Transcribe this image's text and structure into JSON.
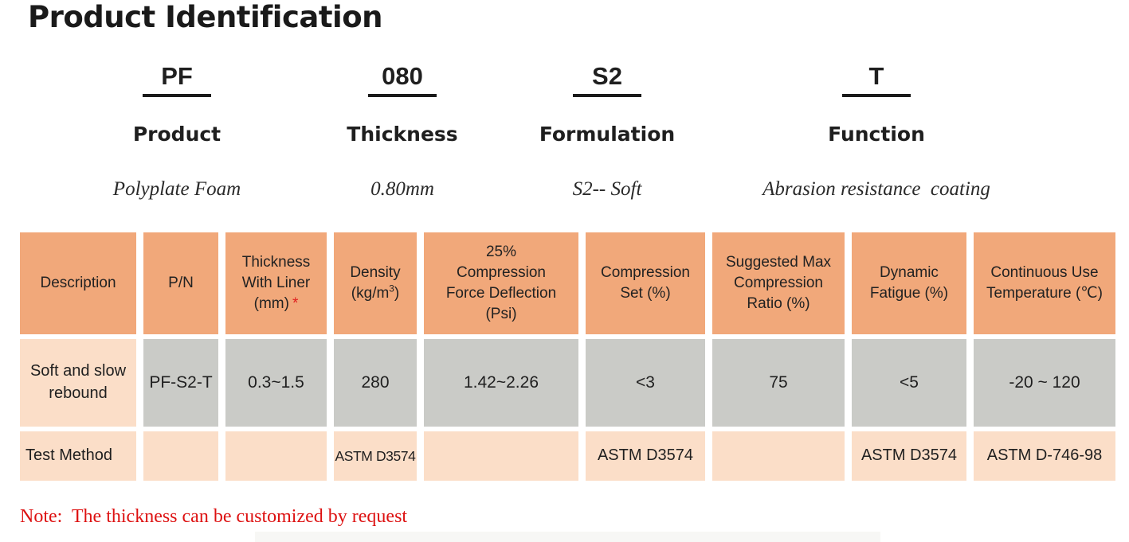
{
  "page": {
    "title": "Product Identification",
    "note": "Note:  The thickness can be customized by request"
  },
  "code_breakdown": {
    "columns": [
      {
        "code": "PF",
        "label": "Product",
        "value": "Polyplate Foam"
      },
      {
        "code": "080",
        "label": "Thickness",
        "value": "0.80mm"
      },
      {
        "code": "S2",
        "label": "Formulation",
        "value": "S2-- Soft"
      },
      {
        "code": "T",
        "label": "Function",
        "value": "Abrasion resistance  coating"
      }
    ]
  },
  "table": {
    "headers": {
      "description": "Description",
      "pn": "P/N",
      "thickness_lines": [
        "Thickness",
        "With Liner",
        "(mm)"
      ],
      "thickness_asterisk": "*",
      "density_line1": "Density",
      "density_pre": "(kg/m",
      "density_sup": "3",
      "density_post": ")",
      "cfd_lines": [
        "25%",
        "Compression",
        "Force Deflection",
        "(Psi)"
      ],
      "compression_set_lines": [
        "Compression",
        "Set (%)"
      ],
      "suggested_lines": [
        "Suggested Max",
        "Compression",
        "Ratio (%)"
      ],
      "dynamic_lines": [
        "Dynamic",
        "Fatigue (%)"
      ],
      "temp_lines": [
        "Continuous Use",
        "Temperature (℃)"
      ]
    },
    "data_row": {
      "description": "Soft and slow rebound",
      "pn": "PF-S2-T",
      "thickness": "0.3~1.5",
      "density": "280",
      "cfd": "1.42~2.26",
      "compression_set": "<3",
      "suggested": "75",
      "dynamic": "<5",
      "temp": "-20 ~ 120"
    },
    "test_row": {
      "label": "Test Method",
      "density": "ASTM D3574",
      "compression_set": "ASTM D3574",
      "dynamic": "ASTM D3574",
      "temp": "ASTM D-746-98"
    }
  },
  "colors": {
    "header_orange": "#F1A87A",
    "cell_gray": "#CACBC7",
    "cell_peach": "#FBDEC8",
    "note_red": "#DD1111",
    "underline_black": "#1A1A1A"
  }
}
